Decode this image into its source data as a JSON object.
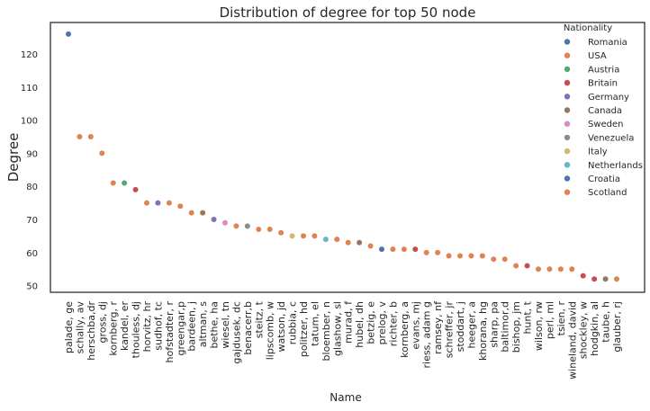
{
  "chart_data": {
    "type": "scatter",
    "title": "Distribution of degree for top 50 node",
    "xlabel": "Name",
    "ylabel": "Degree",
    "ylim": [
      48,
      129.5
    ],
    "y_ticks": [
      50,
      60,
      70,
      80,
      90,
      100,
      110,
      120
    ],
    "grid": false,
    "legend": {
      "title": "Nationality",
      "placement": "top-right",
      "entries": [
        {
          "name": "Romania",
          "color": "#4c72b0"
        },
        {
          "name": "USA",
          "color": "#dd8452"
        },
        {
          "name": "Austria",
          "color": "#55a868"
        },
        {
          "name": "Britain",
          "color": "#c44e52"
        },
        {
          "name": "Germany",
          "color": "#8172b3"
        },
        {
          "name": "Canada",
          "color": "#937860"
        },
        {
          "name": "Sweden",
          "color": "#da8bc3"
        },
        {
          "name": "Venezuela",
          "color": "#8c8c8c"
        },
        {
          "name": "Italy",
          "color": "#ccb974"
        },
        {
          "name": "Netherlands",
          "color": "#64b5cd"
        },
        {
          "name": "Croatia",
          "color": "#4c72b0"
        },
        {
          "name": "Scotland",
          "color": "#dd8452"
        }
      ]
    },
    "points": [
      {
        "name": "palade, ge",
        "degree": 126,
        "nationality": "Romania"
      },
      {
        "name": "schally, av",
        "degree": 95,
        "nationality": "USA"
      },
      {
        "name": "herschba,dr",
        "degree": 95,
        "nationality": "USA"
      },
      {
        "name": "gross, dj",
        "degree": 90,
        "nationality": "USA"
      },
      {
        "name": "kornberg, r",
        "degree": 81,
        "nationality": "USA"
      },
      {
        "name": "kandel, er",
        "degree": 81,
        "nationality": "Austria"
      },
      {
        "name": "thouless, dj",
        "degree": 79,
        "nationality": "Britain"
      },
      {
        "name": "horvitz, hr",
        "degree": 75,
        "nationality": "USA"
      },
      {
        "name": "sudhof, tc",
        "degree": 75,
        "nationality": "Germany"
      },
      {
        "name": "hofstadter, r",
        "degree": 75,
        "nationality": "USA"
      },
      {
        "name": "greengar,p",
        "degree": 74,
        "nationality": "USA"
      },
      {
        "name": "bardeen, j",
        "degree": 72,
        "nationality": "USA"
      },
      {
        "name": "altman, s",
        "degree": 72,
        "nationality": "Canada"
      },
      {
        "name": "bethe, ha",
        "degree": 70,
        "nationality": "Germany"
      },
      {
        "name": "wiesel, tn",
        "degree": 69,
        "nationality": "Sweden"
      },
      {
        "name": "gajdusek, dc",
        "degree": 68,
        "nationality": "USA"
      },
      {
        "name": "benacerr,b",
        "degree": 68,
        "nationality": "Venezuela"
      },
      {
        "name": "steitz, t",
        "degree": 67,
        "nationality": "USA"
      },
      {
        "name": "lipscomb, w",
        "degree": 67,
        "nationality": "USA"
      },
      {
        "name": "watson, jd",
        "degree": 66,
        "nationality": "USA"
      },
      {
        "name": "rubbia, c",
        "degree": 65,
        "nationality": "Italy"
      },
      {
        "name": "politzer, hd",
        "degree": 65,
        "nationality": "USA"
      },
      {
        "name": "tatum, el",
        "degree": 65,
        "nationality": "USA"
      },
      {
        "name": "bloember, n",
        "degree": 64,
        "nationality": "Netherlands"
      },
      {
        "name": "glashow, sl",
        "degree": 64,
        "nationality": "USA"
      },
      {
        "name": "murad, f",
        "degree": 63,
        "nationality": "USA"
      },
      {
        "name": "hubel, dh",
        "degree": 63,
        "nationality": "Canada"
      },
      {
        "name": "betzig, e",
        "degree": 62,
        "nationality": "USA"
      },
      {
        "name": "prelog, v",
        "degree": 61,
        "nationality": "Croatia"
      },
      {
        "name": "richter, b",
        "degree": 61,
        "nationality": "USA"
      },
      {
        "name": "kornberg, a",
        "degree": 61,
        "nationality": "USA"
      },
      {
        "name": "evans, mj",
        "degree": 61,
        "nationality": "Britain"
      },
      {
        "name": "riess, adam g",
        "degree": 60,
        "nationality": "USA"
      },
      {
        "name": "ramsey, nf",
        "degree": 60,
        "nationality": "USA"
      },
      {
        "name": "schreffer, jr",
        "degree": 59,
        "nationality": "USA"
      },
      {
        "name": "stoddart, j",
        "degree": 59,
        "nationality": "Scotland"
      },
      {
        "name": "heeger, a",
        "degree": 59,
        "nationality": "USA"
      },
      {
        "name": "khorana, hg",
        "degree": 59,
        "nationality": "USA"
      },
      {
        "name": "sharp, pa",
        "degree": 58,
        "nationality": "USA"
      },
      {
        "name": "baltimor,d",
        "degree": 58,
        "nationality": "USA"
      },
      {
        "name": "bishop, jm",
        "degree": 56,
        "nationality": "USA"
      },
      {
        "name": "hunt, t",
        "degree": 56,
        "nationality": "Britain"
      },
      {
        "name": "wilson, rw",
        "degree": 55,
        "nationality": "USA"
      },
      {
        "name": "perl, ml",
        "degree": 55,
        "nationality": "USA"
      },
      {
        "name": "tsien, r",
        "degree": 55,
        "nationality": "USA"
      },
      {
        "name": "wineland, david",
        "degree": 55,
        "nationality": "USA"
      },
      {
        "name": "shockley, w",
        "degree": 53,
        "nationality": "Britain"
      },
      {
        "name": "hodgkin, al",
        "degree": 52,
        "nationality": "Britain"
      },
      {
        "name": "taube, h",
        "degree": 52,
        "nationality": "Canada"
      },
      {
        "name": "glauber, rj",
        "degree": 52,
        "nationality": "USA"
      }
    ]
  }
}
